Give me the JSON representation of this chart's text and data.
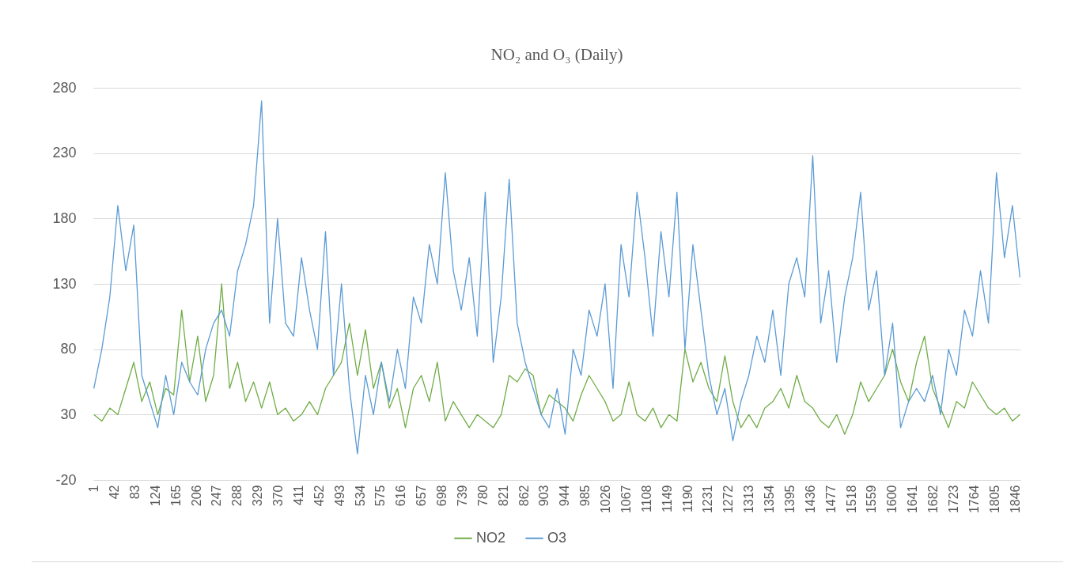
{
  "chart_data": {
    "type": "line",
    "title": "NO₂ and O₃ (Daily)",
    "x": [
      1,
      17,
      33,
      49,
      65,
      81,
      97,
      113,
      129,
      145,
      161,
      177,
      193,
      209,
      225,
      241,
      257,
      273,
      289,
      305,
      321,
      337,
      353,
      369,
      385,
      401,
      417,
      433,
      449,
      465,
      481,
      497,
      513,
      529,
      545,
      561,
      577,
      593,
      609,
      625,
      641,
      657,
      673,
      689,
      705,
      721,
      737,
      753,
      769,
      785,
      801,
      817,
      833,
      849,
      865,
      881,
      897,
      913,
      929,
      945,
      961,
      977,
      993,
      1009,
      1025,
      1041,
      1057,
      1073,
      1089,
      1105,
      1121,
      1137,
      1153,
      1169,
      1185,
      1201,
      1217,
      1233,
      1249,
      1265,
      1281,
      1297,
      1313,
      1329,
      1345,
      1361,
      1377,
      1393,
      1409,
      1425,
      1441,
      1457,
      1473,
      1489,
      1505,
      1521,
      1537,
      1553,
      1569,
      1585,
      1601,
      1617,
      1633,
      1649,
      1665,
      1681,
      1697,
      1713,
      1729,
      1745,
      1761,
      1777,
      1793,
      1809,
      1825,
      1841,
      1856
    ],
    "series": [
      {
        "name": "NO2",
        "color": "#70ad47",
        "values": [
          30,
          25,
          35,
          30,
          50,
          70,
          40,
          55,
          30,
          50,
          45,
          110,
          55,
          90,
          40,
          60,
          130,
          50,
          70,
          40,
          55,
          35,
          55,
          30,
          35,
          25,
          30,
          40,
          30,
          50,
          60,
          70,
          100,
          60,
          95,
          50,
          70,
          35,
          50,
          20,
          50,
          60,
          40,
          70,
          25,
          40,
          30,
          20,
          30,
          25,
          20,
          30,
          60,
          55,
          65,
          60,
          30,
          45,
          40,
          35,
          25,
          45,
          60,
          50,
          40,
          25,
          30,
          55,
          30,
          25,
          35,
          20,
          30,
          25,
          80,
          55,
          70,
          50,
          40,
          75,
          40,
          20,
          30,
          20,
          35,
          40,
          50,
          35,
          60,
          40,
          35,
          25,
          20,
          30,
          15,
          30,
          55,
          40,
          50,
          60,
          80,
          55,
          40,
          70,
          90,
          50,
          35,
          20,
          40,
          35,
          55,
          45,
          35,
          30,
          35,
          25,
          30
        ]
      },
      {
        "name": "O3",
        "color": "#5b9bd5",
        "values": [
          50,
          80,
          120,
          190,
          140,
          175,
          60,
          40,
          20,
          60,
          30,
          70,
          55,
          45,
          80,
          100,
          110,
          90,
          140,
          160,
          190,
          270,
          100,
          180,
          100,
          90,
          150,
          110,
          80,
          170,
          60,
          130,
          50,
          0,
          60,
          30,
          70,
          40,
          80,
          50,
          120,
          100,
          160,
          130,
          215,
          140,
          110,
          150,
          90,
          200,
          70,
          120,
          210,
          100,
          70,
          50,
          30,
          20,
          50,
          15,
          80,
          60,
          110,
          90,
          130,
          50,
          160,
          120,
          200,
          150,
          90,
          170,
          120,
          200,
          80,
          160,
          110,
          60,
          30,
          50,
          10,
          40,
          60,
          90,
          70,
          110,
          60,
          130,
          150,
          120,
          228,
          100,
          140,
          70,
          120,
          150,
          200,
          110,
          140,
          60,
          100,
          20,
          40,
          50,
          40,
          60,
          30,
          80,
          60,
          110,
          90,
          140,
          100,
          215,
          150,
          190,
          135
        ]
      }
    ],
    "xlim": [
      0,
      1857
    ],
    "xticks": [
      1,
      42,
      83,
      124,
      165,
      206,
      247,
      288,
      329,
      370,
      411,
      452,
      493,
      534,
      575,
      616,
      657,
      698,
      739,
      780,
      821,
      862,
      903,
      944,
      985,
      1026,
      1067,
      1108,
      1149,
      1190,
      1231,
      1272,
      1313,
      1354,
      1395,
      1436,
      1477,
      1518,
      1559,
      1600,
      1641,
      1682,
      1723,
      1764,
      1805,
      1846
    ],
    "ylim": [
      -20,
      280
    ],
    "yticks": [
      -20,
      30,
      80,
      130,
      180,
      230,
      280
    ],
    "grid": "y",
    "legend": "bottom",
    "marker": "none",
    "line_style": "solid"
  }
}
